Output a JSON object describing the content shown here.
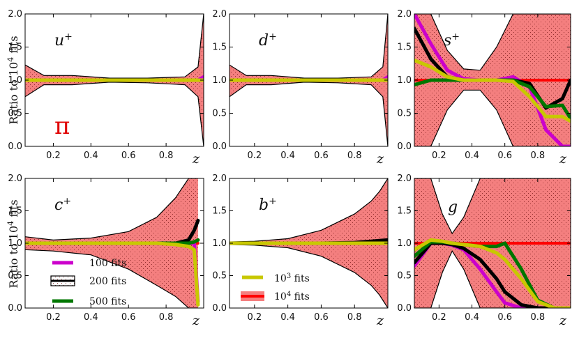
{
  "figure": {
    "ylabel": "Ratio to 10",
    "ylabel_sup": "4",
    "ylabel_tail": " fits",
    "xlabel": "z",
    "pion_label": "π"
  },
  "legend_left": [
    {
      "label": "100 fits",
      "color": "#cc00cc"
    },
    {
      "label": "200 fits",
      "color": "#000000"
    },
    {
      "label": "500 fits",
      "color": "#007700"
    }
  ],
  "legend_mid": [
    {
      "label_base": "10",
      "label_sup": "3",
      "label_tail": " fits",
      "color": "#c8c800"
    },
    {
      "label_base": "10",
      "label_sup": "4",
      "label_tail": " fits",
      "color": "#ff0000"
    }
  ],
  "colors": {
    "band_fill": "#f47f7f",
    "band_edge": "#b00000",
    "ref_line": "#ff0000",
    "fits100": "#cc00cc",
    "fits200": "#000000",
    "fits500": "#007700",
    "fits1000": "#c8c800"
  },
  "chart_data": [
    {
      "type": "line",
      "panel": "u",
      "title_base": "u",
      "title_sup": "+",
      "xlim": [
        0.05,
        1.0
      ],
      "ylim": [
        0.0,
        2.0
      ],
      "xticks": [
        0.2,
        0.4,
        0.6,
        0.8
      ],
      "yticks": [
        0.0,
        0.5,
        1.0,
        1.5,
        2.0
      ],
      "x": [
        0.05,
        0.15,
        0.3,
        0.5,
        0.7,
        0.9,
        0.97,
        1.0
      ],
      "band_upper": [
        1.23,
        1.07,
        1.07,
        1.03,
        1.03,
        1.05,
        1.2,
        2.0
      ],
      "band_lower": [
        0.75,
        0.93,
        0.93,
        0.97,
        0.96,
        0.93,
        0.75,
        0.0
      ],
      "series": [
        {
          "name": "100 fits",
          "values": [
            1.0,
            1.0,
            1.0,
            1.0,
            1.0,
            1.0,
            1.0,
            1.05
          ]
        },
        {
          "name": "200 fits",
          "values": [
            1.0,
            1.0,
            1.0,
            1.0,
            1.0,
            1.0,
            1.0,
            1.0
          ]
        },
        {
          "name": "500 fits",
          "values": [
            1.0,
            1.0,
            1.0,
            1.0,
            1.0,
            1.0,
            1.0,
            1.0
          ]
        },
        {
          "name": "10^3 fits",
          "values": [
            1.0,
            1.0,
            1.0,
            1.0,
            1.0,
            1.0,
            1.0,
            1.0
          ]
        },
        {
          "name": "10^4 fits",
          "values": [
            1.0,
            1.0,
            1.0,
            1.0,
            1.0,
            1.0,
            1.0,
            1.0
          ]
        }
      ]
    },
    {
      "type": "line",
      "panel": "d",
      "title_base": "d",
      "title_sup": "+",
      "xlim": [
        0.05,
        1.0
      ],
      "ylim": [
        0.0,
        2.0
      ],
      "xticks": [
        0.2,
        0.4,
        0.6,
        0.8
      ],
      "yticks": [
        0.0,
        0.5,
        1.0,
        1.5,
        2.0
      ],
      "x": [
        0.05,
        0.15,
        0.3,
        0.5,
        0.7,
        0.9,
        0.97,
        1.0
      ],
      "band_upper": [
        1.23,
        1.07,
        1.07,
        1.03,
        1.03,
        1.05,
        1.2,
        2.0
      ],
      "band_lower": [
        0.75,
        0.93,
        0.93,
        0.97,
        0.96,
        0.93,
        0.75,
        0.0
      ],
      "series": [
        {
          "name": "100 fits",
          "values": [
            1.0,
            1.0,
            1.0,
            1.0,
            1.0,
            1.0,
            1.0,
            1.05
          ]
        },
        {
          "name": "200 fits",
          "values": [
            1.0,
            1.0,
            1.0,
            1.0,
            1.0,
            1.0,
            1.0,
            1.0
          ]
        },
        {
          "name": "500 fits",
          "values": [
            1.0,
            1.0,
            1.0,
            1.0,
            1.0,
            1.0,
            1.0,
            1.0
          ]
        },
        {
          "name": "10^3 fits",
          "values": [
            1.0,
            1.0,
            1.0,
            1.0,
            1.0,
            1.0,
            1.0,
            1.0
          ]
        },
        {
          "name": "10^4 fits",
          "values": [
            1.0,
            1.0,
            1.0,
            1.0,
            1.0,
            1.0,
            1.0,
            1.0
          ]
        }
      ]
    },
    {
      "type": "line",
      "panel": "s",
      "title_base": "s",
      "title_sup": "+",
      "xlim": [
        0.05,
        1.0
      ],
      "ylim": [
        0.0,
        2.0
      ],
      "xticks": [
        0.2,
        0.4,
        0.6,
        0.8
      ],
      "yticks": [
        0.0,
        0.5,
        1.0,
        1.5,
        2.0
      ],
      "x": [
        0.05,
        0.15,
        0.25,
        0.35,
        0.45,
        0.55,
        0.65,
        0.75,
        0.85,
        0.95,
        1.0
      ],
      "band_upper": [
        2.0,
        2.0,
        1.45,
        1.17,
        1.15,
        1.5,
        2.0,
        2.0,
        2.0,
        2.0,
        2.0
      ],
      "band_lower": [
        0.0,
        0.0,
        0.55,
        0.85,
        0.85,
        0.55,
        0.0,
        0.0,
        0.0,
        0.0,
        0.0
      ],
      "series": [
        {
          "name": "100 fits",
          "values": [
            2.0,
            1.55,
            1.15,
            1.02,
            1.0,
            1.0,
            1.05,
            0.9,
            0.25,
            0.0,
            0.0
          ]
        },
        {
          "name": "200 fits",
          "values": [
            1.78,
            1.32,
            1.05,
            1.0,
            1.0,
            1.0,
            1.0,
            0.95,
            0.58,
            0.72,
            1.0
          ]
        },
        {
          "name": "500 fits",
          "values": [
            0.93,
            1.0,
            1.0,
            1.0,
            1.0,
            1.0,
            1.0,
            0.9,
            0.6,
            0.62,
            0.42
          ]
        },
        {
          "name": "10^3 fits",
          "values": [
            1.3,
            1.2,
            1.05,
            1.0,
            1.0,
            1.0,
            0.98,
            0.75,
            0.45,
            0.45,
            0.38
          ]
        },
        {
          "name": "10^4 fits",
          "values": [
            1.0,
            1.0,
            1.0,
            1.0,
            1.0,
            1.0,
            1.0,
            1.0,
            1.0,
            1.0,
            1.0
          ]
        }
      ]
    },
    {
      "type": "line",
      "panel": "c",
      "title_base": "c",
      "title_sup": "+",
      "xlim": [
        0.05,
        1.0
      ],
      "ylim": [
        0.0,
        2.0
      ],
      "xticks": [
        0.2,
        0.4,
        0.6,
        0.8
      ],
      "yticks": [
        0.0,
        0.5,
        1.0,
        1.5,
        2.0
      ],
      "x": [
        0.05,
        0.2,
        0.4,
        0.6,
        0.75,
        0.85,
        0.92,
        0.95,
        0.97
      ],
      "band_upper": [
        1.1,
        1.05,
        1.08,
        1.18,
        1.4,
        1.7,
        2.0,
        2.0,
        2.0
      ],
      "band_lower": [
        0.9,
        0.88,
        0.82,
        0.6,
        0.35,
        0.18,
        0.0,
        0.0,
        0.0
      ],
      "series": [
        {
          "name": "100 fits",
          "values": [
            1.0,
            1.0,
            1.0,
            1.0,
            1.0,
            1.0,
            1.0,
            1.0,
            0.1
          ]
        },
        {
          "name": "200 fits",
          "values": [
            1.0,
            1.0,
            1.0,
            1.0,
            1.0,
            1.0,
            1.05,
            1.2,
            1.35
          ]
        },
        {
          "name": "500 fits",
          "values": [
            1.0,
            1.0,
            1.0,
            1.0,
            1.0,
            1.0,
            1.0,
            1.02,
            1.05
          ]
        },
        {
          "name": "10^3 fits",
          "values": [
            1.0,
            1.0,
            1.0,
            1.0,
            1.0,
            0.98,
            0.95,
            0.9,
            0.05
          ]
        },
        {
          "name": "10^4 fits",
          "values": [
            1.0,
            1.0,
            1.0,
            1.0,
            1.0,
            1.0,
            1.0,
            1.0,
            1.0
          ]
        }
      ]
    },
    {
      "type": "line",
      "panel": "b",
      "title_base": "b",
      "title_sup": "+",
      "xlim": [
        0.05,
        1.0
      ],
      "ylim": [
        0.0,
        2.0
      ],
      "xticks": [
        0.2,
        0.4,
        0.6,
        0.8
      ],
      "yticks": [
        0.0,
        0.5,
        1.0,
        1.5,
        2.0
      ],
      "x": [
        0.05,
        0.2,
        0.4,
        0.6,
        0.8,
        0.9,
        0.95,
        1.0
      ],
      "band_upper": [
        1.02,
        1.03,
        1.07,
        1.2,
        1.45,
        1.65,
        1.8,
        2.0
      ],
      "band_lower": [
        0.98,
        0.97,
        0.93,
        0.8,
        0.55,
        0.35,
        0.2,
        0.0
      ],
      "series": [
        {
          "name": "100 fits",
          "values": [
            1.0,
            1.0,
            1.0,
            1.0,
            1.0,
            1.0,
            1.0,
            1.0
          ]
        },
        {
          "name": "200 fits",
          "values": [
            1.0,
            1.0,
            1.0,
            1.0,
            1.01,
            1.03,
            1.04,
            1.05
          ]
        },
        {
          "name": "500 fits",
          "values": [
            1.0,
            1.0,
            1.0,
            1.0,
            1.0,
            1.0,
            1.0,
            1.0
          ]
        },
        {
          "name": "10^3 fits",
          "values": [
            1.0,
            1.0,
            1.0,
            1.0,
            1.0,
            1.0,
            1.0,
            1.0
          ]
        },
        {
          "name": "10^4 fits",
          "values": [
            1.0,
            1.0,
            1.0,
            1.0,
            1.0,
            1.0,
            1.0,
            1.0
          ]
        }
      ]
    },
    {
      "type": "line",
      "panel": "g",
      "title_base": "g",
      "title_sup": "",
      "xlim": [
        0.05,
        1.0
      ],
      "ylim": [
        0.0,
        2.0
      ],
      "xticks": [
        0.2,
        0.4,
        0.6,
        0.8
      ],
      "yticks": [
        0.0,
        0.5,
        1.0,
        1.5,
        2.0
      ],
      "x": [
        0.05,
        0.15,
        0.22,
        0.28,
        0.35,
        0.45,
        0.55,
        0.6,
        0.7,
        0.8,
        0.9,
        1.0
      ],
      "band_upper": [
        2.0,
        2.0,
        1.45,
        1.15,
        1.4,
        2.0,
        2.0,
        2.0,
        2.0,
        2.0,
        2.0,
        2.0
      ],
      "band_lower": [
        0.0,
        0.0,
        0.55,
        0.88,
        0.6,
        0.0,
        0.0,
        0.0,
        0.0,
        0.0,
        0.0,
        0.0
      ],
      "series": [
        {
          "name": "100 fits",
          "values": [
            0.65,
            1.0,
            1.0,
            0.97,
            0.9,
            0.6,
            0.25,
            0.08,
            0.0,
            0.0,
            0.0,
            0.0
          ]
        },
        {
          "name": "200 fits",
          "values": [
            0.7,
            1.0,
            1.0,
            0.98,
            0.92,
            0.75,
            0.45,
            0.25,
            0.05,
            0.0,
            0.0,
            0.0
          ]
        },
        {
          "name": "500 fits",
          "values": [
            0.8,
            1.02,
            1.02,
            1.0,
            0.98,
            0.95,
            0.95,
            1.0,
            0.6,
            0.12,
            0.0,
            0.0
          ]
        },
        {
          "name": "10^3 fits",
          "values": [
            0.9,
            1.05,
            1.03,
            1.0,
            0.98,
            0.95,
            0.85,
            0.75,
            0.45,
            0.1,
            0.0,
            0.0
          ]
        },
        {
          "name": "10^4 fits",
          "values": [
            1.0,
            1.0,
            1.0,
            1.0,
            1.0,
            1.0,
            1.0,
            1.0,
            1.0,
            1.0,
            1.0,
            1.0
          ]
        }
      ]
    }
  ]
}
